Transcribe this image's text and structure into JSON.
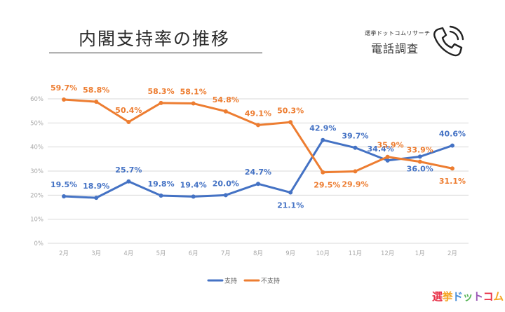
{
  "header": {
    "title": "内閣支持率の推移",
    "brand_small": "選挙ドットコムリサーチ",
    "brand_sub": "電話調査"
  },
  "logo": {
    "text_parts": [
      "選",
      "挙",
      "ド",
      "ッ",
      "ト",
      "コ",
      "ム"
    ]
  },
  "chart_data": {
    "type": "line",
    "title": "内閣支持率の推移",
    "categories": [
      "2月",
      "3月",
      "4月",
      "5月",
      "6月",
      "7月",
      "8月",
      "9月",
      "10月",
      "11月",
      "12月",
      "1月",
      "2月"
    ],
    "ylim": [
      0,
      60
    ],
    "yticks": [
      0,
      10,
      20,
      30,
      40,
      50,
      60
    ],
    "ytick_labels": [
      "0%",
      "10%",
      "20%",
      "30%",
      "40%",
      "50%",
      "60%"
    ],
    "grid": true,
    "legend_position": "bottom",
    "series": [
      {
        "name": "支持",
        "color": "#4472c4",
        "values": [
          19.5,
          18.9,
          25.7,
          19.8,
          19.4,
          20.0,
          24.7,
          21.1,
          42.9,
          39.7,
          34.4,
          36.0,
          40.6
        ],
        "labels": [
          "19.5%",
          "18.9%",
          "25.7%",
          "19.8%",
          "19.4%",
          "20.0%",
          "24.7%",
          "21.1%",
          "42.9%",
          "39.7%",
          "34.4%",
          "36.0%",
          "40.6%"
        ]
      },
      {
        "name": "不支持",
        "color": "#ed7d31",
        "values": [
          59.7,
          58.8,
          50.4,
          58.3,
          58.1,
          54.8,
          49.1,
          50.3,
          29.5,
          29.9,
          35.9,
          33.9,
          31.1
        ],
        "labels": [
          "59.7%",
          "58.8%",
          "50.4%",
          "58.3%",
          "58.1%",
          "54.8%",
          "49.1%",
          "50.3%",
          "29.5%",
          "29.9%",
          "35.9%",
          "33.9%",
          "31.1%"
        ]
      }
    ]
  }
}
